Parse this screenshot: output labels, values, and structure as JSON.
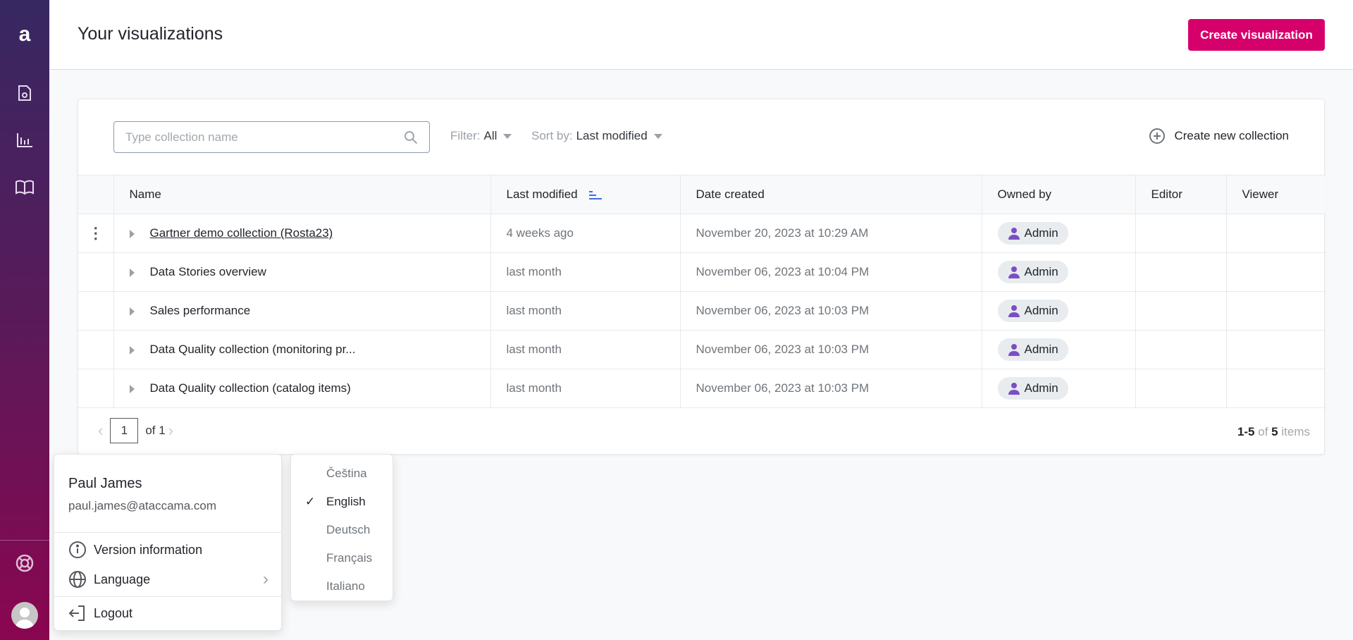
{
  "sidebar": {
    "logo": "a",
    "items": [
      "report-icon",
      "chart-icon",
      "book-icon"
    ],
    "help": "lifebuoy-icon"
  },
  "header": {
    "title": "Your visualizations",
    "create_button": "Create visualization"
  },
  "toolbar": {
    "search_placeholder": "Type collection name",
    "filter_label": "Filter:",
    "filter_value": "All",
    "sort_label": "Sort by:",
    "sort_value": "Last modified",
    "new_collection": "Create new collection"
  },
  "table": {
    "columns": [
      "Name",
      "Last modified",
      "Date created",
      "Owned by",
      "Editor",
      "Viewer"
    ],
    "rows": [
      {
        "name": "Gartner demo collection (Rosta23)",
        "modified": "4 weeks ago",
        "created": "November 20, 2023 at 10:29 AM",
        "owner": "Admin",
        "editor": "",
        "viewer": ""
      },
      {
        "name": "Data Stories overview",
        "modified": "last month",
        "created": "November 06, 2023 at 10:04 PM",
        "owner": "Admin",
        "editor": "",
        "viewer": ""
      },
      {
        "name": "Sales performance",
        "modified": "last month",
        "created": "November 06, 2023 at 10:03 PM",
        "owner": "Admin",
        "editor": "",
        "viewer": ""
      },
      {
        "name": "Data Quality collection (monitoring pr...",
        "modified": "last month",
        "created": "November 06, 2023 at 10:03 PM",
        "owner": "Admin",
        "editor": "",
        "viewer": ""
      },
      {
        "name": "Data Quality collection (catalog items)",
        "modified": "last month",
        "created": "November 06, 2023 at 10:03 PM",
        "owner": "Admin",
        "editor": "",
        "viewer": ""
      }
    ]
  },
  "pagination": {
    "page": "1",
    "of": "of 1",
    "range": "1-5",
    "of_word": "of",
    "total": "5",
    "items_word": "items"
  },
  "user_menu": {
    "name": "Paul James",
    "email": "paul.james@ataccama.com",
    "version": "Version information",
    "language": "Language",
    "logout": "Logout"
  },
  "language_menu": {
    "options": [
      "Čeština",
      "English",
      "Deutsch",
      "Français",
      "Italiano"
    ],
    "selected": "English"
  },
  "colors": {
    "accent": "#d6006b",
    "sort_icon": "#3b6ee8",
    "owner_icon": "#7a4fc4"
  }
}
